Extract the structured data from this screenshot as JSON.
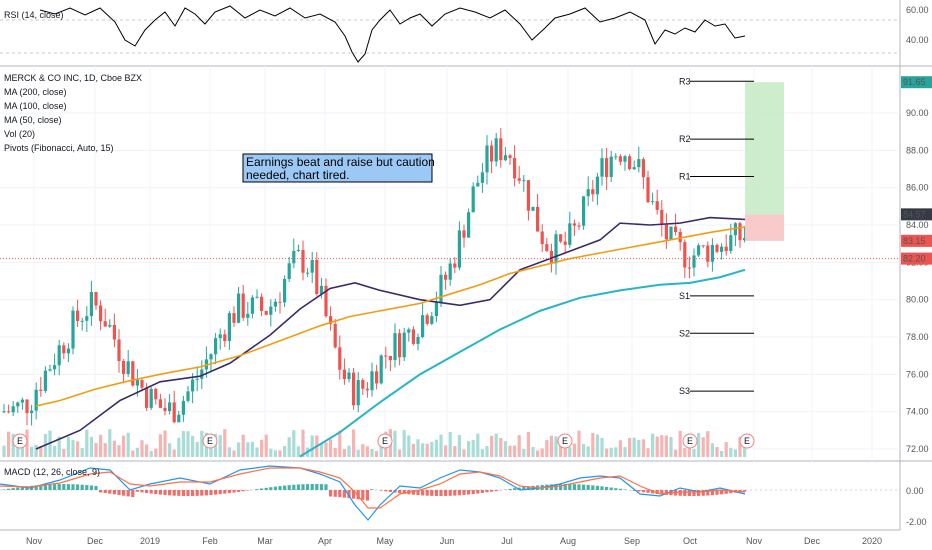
{
  "chart_data": {
    "type": "candlestick",
    "symbol": "MERCK & CO INC, 1D, Cboe BZX",
    "indicators": [
      "MA (200, close)",
      "MA (100, close)",
      "MA (50, close)",
      "Vol (20)",
      "Pivots (Fibonacci, Auto, 15)"
    ],
    "rsi_label": "RSI (14, close)",
    "macd_label": "MACD (12, 26, close, 9)",
    "annotation": "Earnings beat and raise but caution needed, chart tired.",
    "x_ticks": [
      "Nov",
      "Dec",
      "2019",
      "Feb",
      "Mar",
      "Apr",
      "May",
      "Jun",
      "Jul",
      "Aug",
      "Sep",
      "Oct",
      "Nov",
      "Dec",
      "2020"
    ],
    "y_ticks": [
      "72.00",
      "74.00",
      "76.00",
      "78.00",
      "80.00",
      "82.00",
      "84.00",
      "86.00",
      "88.00",
      "90.00"
    ],
    "ylim": [
      71.5,
      92.5
    ],
    "rsi_ticks": [
      "60.00",
      "40.00"
    ],
    "macd_ticks": [
      "0.00",
      "-2.00"
    ],
    "price_badges": [
      {
        "label": "91.65",
        "value": 91.65,
        "color": "#26a69a"
      },
      {
        "label": "84.57",
        "value": 84.57,
        "color": "#363a45"
      },
      {
        "label": "83.15",
        "value": 83.15,
        "color": "#ef5350"
      },
      {
        "label": "82.20",
        "value": 82.2,
        "color": "#ef5350"
      }
    ],
    "pivots": [
      {
        "name": "R3",
        "value": 91.7
      },
      {
        "name": "R2",
        "value": 88.6
      },
      {
        "name": "R1",
        "value": 86.6
      },
      {
        "name": "S1",
        "value": 80.2
      },
      {
        "name": "S2",
        "value": 78.2
      },
      {
        "name": "S3",
        "value": 75.1
      }
    ],
    "ma50": [
      [
        36,
        74.3
      ],
      [
        60,
        74.6
      ],
      [
        95,
        75.2
      ],
      [
        125,
        75.6
      ],
      [
        160,
        76.0
      ],
      [
        200,
        76.4
      ],
      [
        240,
        77.0
      ],
      [
        280,
        77.8
      ],
      [
        320,
        78.6
      ],
      [
        350,
        79.1
      ],
      [
        380,
        79.4
      ],
      [
        420,
        79.8
      ],
      [
        450,
        80.3
      ],
      [
        480,
        80.8
      ],
      [
        510,
        81.4
      ],
      [
        540,
        81.8
      ],
      [
        570,
        82.2
      ],
      [
        600,
        82.5
      ],
      [
        630,
        82.8
      ],
      [
        650,
        83.0
      ],
      [
        680,
        83.3
      ],
      [
        710,
        83.6
      ],
      [
        745,
        83.9
      ]
    ],
    "ma100": [
      [
        36,
        72.0
      ],
      [
        80,
        73.0
      ],
      [
        120,
        74.6
      ],
      [
        160,
        75.6
      ],
      [
        200,
        75.9
      ],
      [
        230,
        76.6
      ],
      [
        270,
        78.1
      ],
      [
        300,
        79.5
      ],
      [
        330,
        80.6
      ],
      [
        355,
        80.9
      ],
      [
        380,
        80.5
      ],
      [
        420,
        80.0
      ],
      [
        460,
        79.7
      ],
      [
        490,
        80.0
      ],
      [
        520,
        81.6
      ],
      [
        550,
        82.2
      ],
      [
        580,
        82.8
      ],
      [
        600,
        83.2
      ],
      [
        620,
        84.1
      ],
      [
        650,
        84.0
      ],
      [
        680,
        84.1
      ],
      [
        710,
        84.4
      ],
      [
        745,
        84.3
      ]
    ],
    "ma200": [
      [
        300,
        71.6
      ],
      [
        340,
        72.9
      ],
      [
        380,
        74.5
      ],
      [
        420,
        76.0
      ],
      [
        460,
        77.2
      ],
      [
        500,
        78.4
      ],
      [
        540,
        79.4
      ],
      [
        580,
        80.1
      ],
      [
        620,
        80.5
      ],
      [
        660,
        80.8
      ],
      [
        690,
        80.9
      ],
      [
        720,
        81.2
      ],
      [
        745,
        81.6
      ]
    ],
    "long_position": {
      "target": 91.65,
      "entry": 84.57,
      "stop": 83.15
    }
  }
}
